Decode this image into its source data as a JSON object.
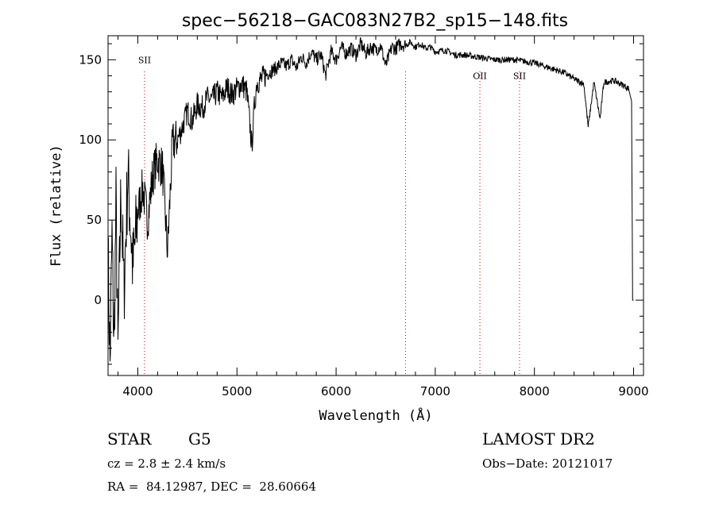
{
  "chart_data": {
    "type": "line",
    "title": "spec−56218−GAC083N27B2_sp15−148.fits",
    "xlabel": "Wavelength (Å)",
    "ylabel": "Flux (relative)",
    "xlim": [
      3700,
      9100
    ],
    "ylim": [
      -47,
      165
    ],
    "xticks": [
      4000,
      5000,
      6000,
      7000,
      8000,
      9000
    ],
    "yticks": [
      0,
      50,
      100,
      150
    ],
    "grid": false,
    "series": [
      {
        "color": "#000000",
        "x": [
          3700,
          3720,
          3740,
          3760,
          3780,
          3800,
          3830,
          3860,
          3900,
          3950,
          4000,
          4050,
          4100,
          4150,
          4200,
          4250,
          4300,
          4350,
          4400,
          4450,
          4500,
          4550,
          4600,
          4650,
          4700,
          4750,
          4800,
          4850,
          4900,
          4950,
          5000,
          5050,
          5100,
          5150,
          5175,
          5200,
          5250,
          5300,
          5350,
          5400,
          5450,
          5500,
          5550,
          5600,
          5650,
          5700,
          5750,
          5800,
          5850,
          5893,
          5950,
          6000,
          6050,
          6100,
          6150,
          6200,
          6250,
          6300,
          6350,
          6400,
          6450,
          6500,
          6563,
          6600,
          6650,
          6700,
          6750,
          6800,
          6850,
          6900,
          6950,
          7000,
          7100,
          7200,
          7300,
          7400,
          7500,
          7600,
          7700,
          7800,
          7900,
          8000,
          8100,
          8200,
          8300,
          8400,
          8498,
          8542,
          8600,
          8662,
          8700,
          8800,
          8900,
          8950,
          8980,
          8990,
          9000
        ],
        "y": [
          30,
          -40,
          40,
          -30,
          60,
          -35,
          70,
          5,
          80,
          20,
          55,
          70,
          50,
          78,
          88,
          82,
          30,
          98,
          100,
          108,
          118,
          112,
          122,
          120,
          126,
          125,
          130,
          126,
          133,
          128,
          132,
          135,
          130,
          96,
          120,
          136,
          138,
          141,
          143,
          145,
          148,
          146,
          150,
          145,
          152,
          148,
          155,
          150,
          153,
          140,
          155,
          150,
          158,
          154,
          157,
          153,
          160,
          154,
          158,
          156,
          159,
          146,
          158,
          157,
          160,
          159,
          161,
          158,
          160,
          157,
          158,
          155,
          156,
          153,
          153,
          152,
          151,
          150,
          150,
          150,
          149,
          148,
          146,
          144,
          142,
          138,
          135,
          108,
          136,
          113,
          136,
          137,
          134,
          132,
          124,
          0,
          0
        ]
      }
    ],
    "annotations": [
      {
        "label": "SII",
        "x": 4068,
        "y": 150
      },
      {
        "label": "",
        "x": 6700,
        "y": 158
      },
      {
        "label": "OII",
        "x": 7450,
        "y": 140
      },
      {
        "label": "SII",
        "x": 7850,
        "y": 140
      }
    ]
  },
  "info": {
    "object_type": "STAR",
    "subclass": "G5",
    "survey": "LAMOST DR2",
    "cz": "cz = 2.8 ± 2.4 km/s",
    "obs_date": "Obs−Date: 20121017",
    "coords": "RA =  84.12987, DEC =  28.60664"
  }
}
